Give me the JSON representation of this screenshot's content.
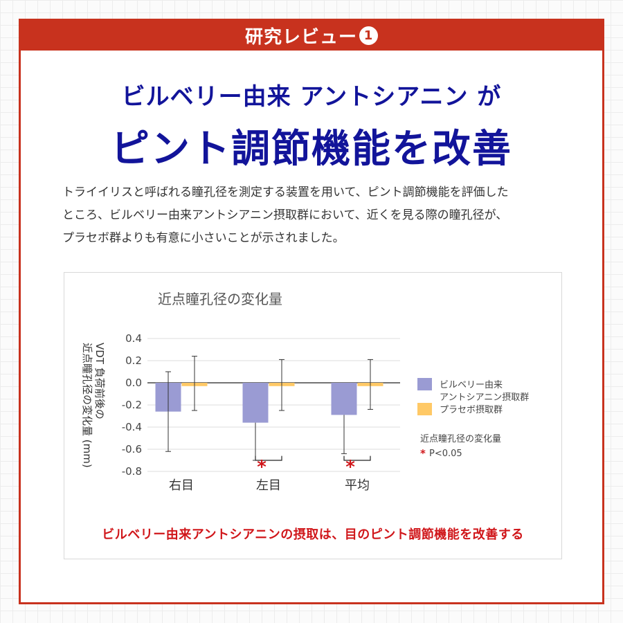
{
  "banner": {
    "title": "研究レビュー",
    "number": "1"
  },
  "headline": {
    "line1": "ビルベリー由来 アントシアニン が",
    "line2": "ピント調節機能を改善"
  },
  "body_lines": [
    "トライイリスと呼ばれる瞳孔径を測定する装置を用いて、ピント調節機能を評価した",
    "ところ、ビルベリー由来アントシアニン摂取群において、近くを見る際の瞳孔径が、",
    "プラセボ群よりも有意に小さいことが示されました。"
  ],
  "chart_data": {
    "type": "bar",
    "title": "近点瞳孔径の変化量",
    "ylabel": [
      "VDT 負荷前後の",
      "近点瞳孔径の変化量 (mm)"
    ],
    "categories": [
      "右目",
      "左目",
      "平均"
    ],
    "ylim": [
      -0.8,
      0.4
    ],
    "yticks": [
      0.4,
      0.2,
      0.0,
      -0.2,
      -0.4,
      -0.6,
      -0.8
    ],
    "ytick_labels": [
      "0.4",
      "0.2",
      "0.0",
      "-0.2",
      "-0.4",
      "-0.6",
      "-0.8"
    ],
    "series": [
      {
        "name": "ビルベリー由来\nアントシアニン摂取群",
        "color": "#9a9bd3",
        "values": [
          -0.26,
          -0.36,
          -0.29
        ],
        "err_low": [
          -0.62,
          -0.7,
          -0.64
        ],
        "err_high": [
          0.1,
          null,
          null
        ]
      },
      {
        "name": "プラセボ摂取群",
        "color": "#ffc966",
        "values": [
          -0.03,
          -0.03,
          -0.03
        ],
        "err_low": [
          -0.25,
          -0.25,
          -0.24
        ],
        "err_high": [
          0.24,
          0.21,
          0.21
        ]
      }
    ],
    "significance": [
      {
        "category": "左目",
        "mark": "*"
      },
      {
        "category": "平均",
        "mark": "*"
      }
    ],
    "sig_color": "#d0161a",
    "note_title": "近点瞳孔径の変化量",
    "note_star": "*",
    "note_text": "P<0.05",
    "grid": true
  },
  "conclusion": "ビルベリー由来アントシアニンの摂取は、目のピント調節機能を改善する",
  "colors": {
    "brand_red": "#c8321e",
    "headline_blue": "#12149a",
    "accent_red": "#d0161a"
  }
}
